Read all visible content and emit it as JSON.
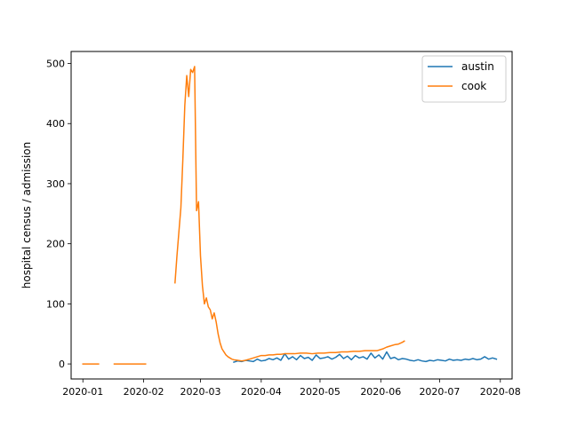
{
  "chart_data": {
    "type": "line",
    "title": "",
    "xlabel": "",
    "ylabel": "hospital census / admission",
    "x_axis_type": "date",
    "xlim": [
      "2019-12-26",
      "2020-08-07"
    ],
    "ylim": [
      -25,
      520
    ],
    "x_ticks": [
      "2020-01-01",
      "2020-02-01",
      "2020-03-01",
      "2020-04-01",
      "2020-05-01",
      "2020-06-01",
      "2020-07-01",
      "2020-08-01"
    ],
    "x_tick_labels": [
      "2020-01",
      "2020-02",
      "2020-03",
      "2020-04",
      "2020-05",
      "2020-06",
      "2020-07",
      "2020-08"
    ],
    "y_ticks": [
      0,
      100,
      200,
      300,
      400,
      500
    ],
    "y_tick_labels": [
      "0",
      "100",
      "200",
      "300",
      "400",
      "500"
    ],
    "grid": false,
    "legend_position": "upper right",
    "series": [
      {
        "name": "austin",
        "color": "#1f77b4",
        "segments": [
          {
            "x": [
              "2020-03-18",
              "2020-03-20",
              "2020-03-22",
              "2020-03-24",
              "2020-03-26",
              "2020-03-28",
              "2020-03-30",
              "2020-04-01",
              "2020-04-03",
              "2020-04-05",
              "2020-04-07",
              "2020-04-09",
              "2020-04-11",
              "2020-04-13",
              "2020-04-15",
              "2020-04-17",
              "2020-04-19",
              "2020-04-21",
              "2020-04-23",
              "2020-04-25",
              "2020-04-27",
              "2020-04-29",
              "2020-05-01",
              "2020-05-03",
              "2020-05-05",
              "2020-05-07",
              "2020-05-09",
              "2020-05-11",
              "2020-05-13",
              "2020-05-15",
              "2020-05-17",
              "2020-05-19",
              "2020-05-21",
              "2020-05-23",
              "2020-05-25",
              "2020-05-27",
              "2020-05-29",
              "2020-05-31",
              "2020-06-02",
              "2020-06-04",
              "2020-06-06",
              "2020-06-08",
              "2020-06-10",
              "2020-06-12",
              "2020-06-14",
              "2020-06-16",
              "2020-06-18",
              "2020-06-20",
              "2020-06-22",
              "2020-06-24",
              "2020-06-26",
              "2020-06-28",
              "2020-06-30",
              "2020-07-02",
              "2020-07-04",
              "2020-07-06",
              "2020-07-08",
              "2020-07-10",
              "2020-07-12",
              "2020-07-14",
              "2020-07-16",
              "2020-07-18",
              "2020-07-20",
              "2020-07-22",
              "2020-07-24",
              "2020-07-26",
              "2020-07-28",
              "2020-07-30"
            ],
            "y": [
              3,
              5,
              4,
              6,
              5,
              4,
              8,
              5,
              6,
              9,
              7,
              10,
              6,
              17,
              8,
              12,
              7,
              14,
              9,
              11,
              6,
              15,
              9,
              10,
              12,
              8,
              11,
              16,
              9,
              13,
              7,
              14,
              10,
              12,
              8,
              18,
              10,
              15,
              8,
              20,
              9,
              11,
              7,
              9,
              8,
              6,
              5,
              7,
              5,
              4,
              6,
              5,
              7,
              6,
              5,
              8,
              6,
              7,
              6,
              8,
              7,
              9,
              7,
              8,
              12,
              8,
              10,
              8
            ]
          }
        ]
      },
      {
        "name": "cook",
        "color": "#ff7f0e",
        "segments": [
          {
            "x": [
              "2020-01-01",
              "2020-01-09"
            ],
            "y": [
              0,
              0
            ]
          },
          {
            "x": [
              "2020-01-17",
              "2020-02-02"
            ],
            "y": [
              0,
              0
            ]
          },
          {
            "x": [
              "2020-02-17",
              "2020-02-18",
              "2020-02-19",
              "2020-02-20",
              "2020-02-21",
              "2020-02-22",
              "2020-02-23",
              "2020-02-24",
              "2020-02-25",
              "2020-02-26",
              "2020-02-27",
              "2020-02-28",
              "2020-02-29",
              "2020-03-01",
              "2020-03-02",
              "2020-03-03",
              "2020-03-04",
              "2020-03-05",
              "2020-03-06",
              "2020-03-07",
              "2020-03-08",
              "2020-03-09",
              "2020-03-10",
              "2020-03-11",
              "2020-03-12",
              "2020-03-13",
              "2020-03-14",
              "2020-03-15",
              "2020-03-16",
              "2020-03-17",
              "2020-03-18",
              "2020-03-20",
              "2020-03-22",
              "2020-03-24",
              "2020-03-26",
              "2020-03-28",
              "2020-03-30",
              "2020-04-01",
              "2020-04-03",
              "2020-04-05",
              "2020-04-07",
              "2020-04-09",
              "2020-04-11",
              "2020-04-13",
              "2020-04-15",
              "2020-04-18",
              "2020-04-21",
              "2020-04-24",
              "2020-04-27",
              "2020-04-30",
              "2020-05-03",
              "2020-05-06",
              "2020-05-09",
              "2020-05-12",
              "2020-05-15",
              "2020-05-18",
              "2020-05-21",
              "2020-05-24",
              "2020-05-27",
              "2020-05-30",
              "2020-06-02",
              "2020-06-04",
              "2020-06-06",
              "2020-06-08",
              "2020-06-10",
              "2020-06-12",
              "2020-06-13"
            ],
            "y": [
              135,
              180,
              220,
              260,
              340,
              430,
              480,
              445,
              490,
              485,
              495,
              255,
              270,
              180,
              130,
              100,
              110,
              95,
              90,
              75,
              85,
              70,
              50,
              35,
              25,
              20,
              15,
              12,
              10,
              8,
              7,
              6,
              5,
              6,
              8,
              10,
              12,
              14,
              14,
              15,
              15,
              16,
              16,
              17,
              17,
              17,
              18,
              18,
              17,
              18,
              18,
              19,
              19,
              20,
              20,
              21,
              21,
              22,
              22,
              22,
              25,
              28,
              30,
              32,
              33,
              36,
              38
            ]
          }
        ]
      }
    ]
  }
}
